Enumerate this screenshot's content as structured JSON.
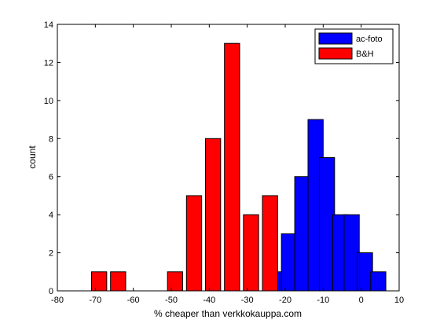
{
  "chart_data": {
    "type": "bar",
    "title": "",
    "xlabel": "% cheaper than verkkokauppa.com",
    "ylabel": "count",
    "xlim": [
      -80,
      10
    ],
    "ylim": [
      0,
      14
    ],
    "xticks": [
      -80,
      -70,
      -60,
      -50,
      -40,
      -30,
      -20,
      -10,
      0,
      10
    ],
    "yticks": [
      0,
      2,
      4,
      6,
      8,
      10,
      12,
      14
    ],
    "grid": false,
    "legend_position": "top-right",
    "bar_width": 4,
    "series": [
      {
        "name": "ac-foto",
        "color": "#0000ff",
        "x": [
          -22.5,
          -19,
          -15.5,
          -12,
          -9,
          -5.5,
          -2.5,
          1,
          4.5
        ],
        "values": [
          1,
          3,
          6,
          9,
          7,
          4,
          4,
          2,
          1
        ]
      },
      {
        "name": "B&H",
        "color": "#ff0000",
        "x": [
          -69,
          -64,
          -49,
          -44,
          -39,
          -34,
          -29,
          -24
        ],
        "values": [
          1,
          1,
          1,
          5,
          8,
          13,
          4,
          5
        ]
      }
    ]
  }
}
